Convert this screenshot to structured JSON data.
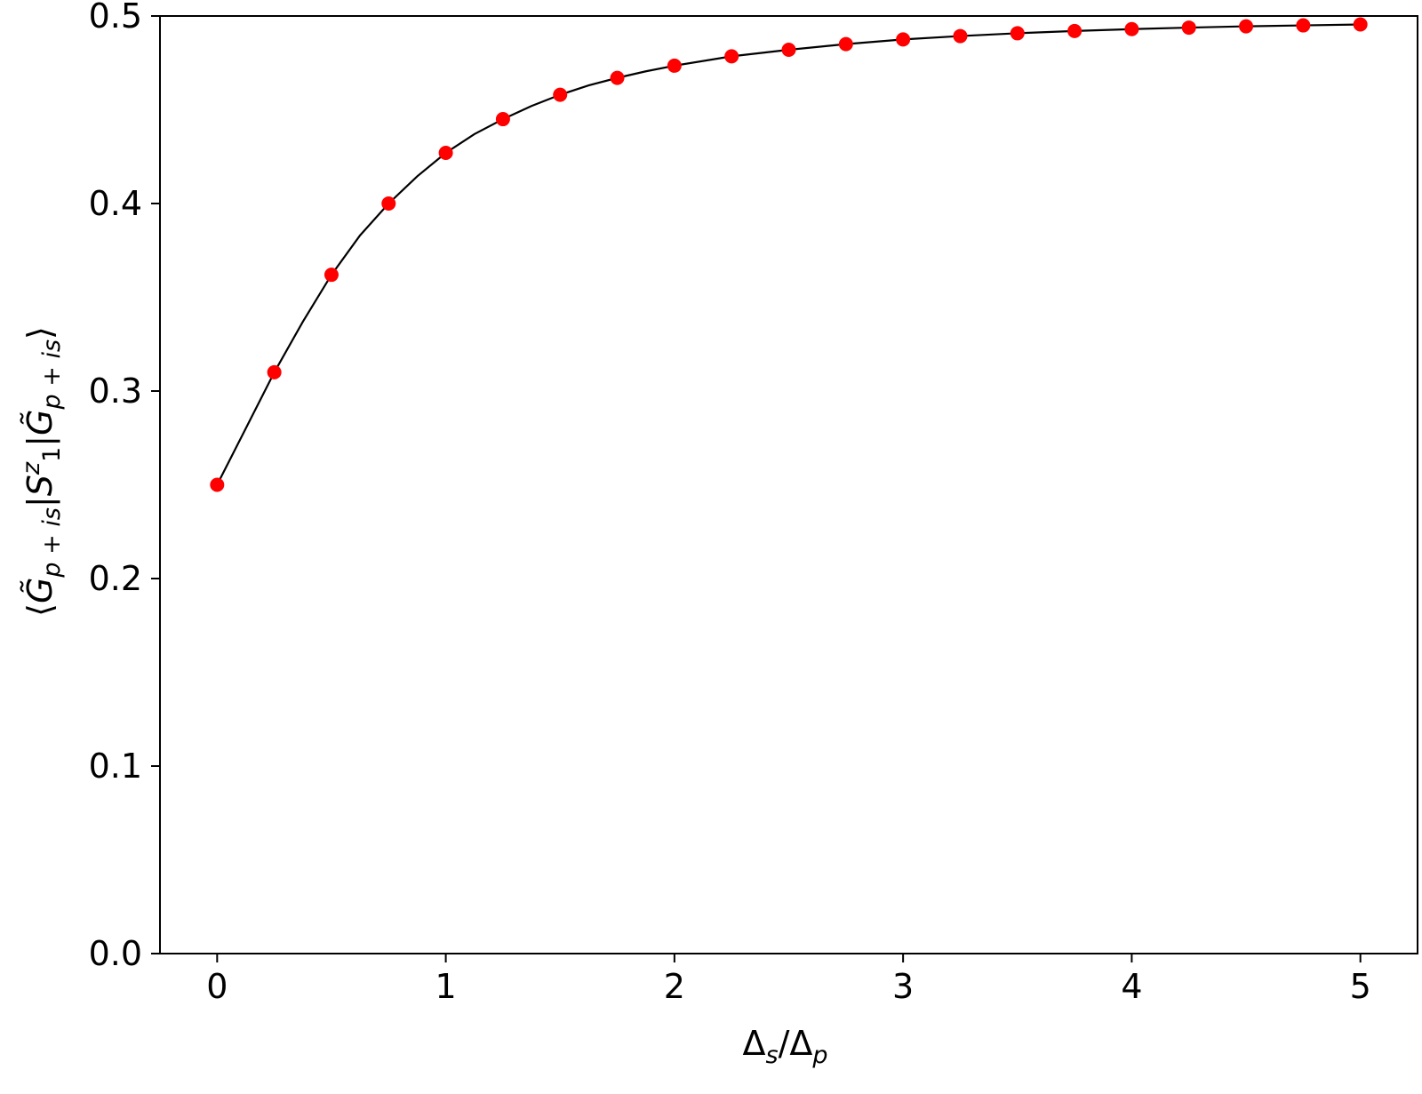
{
  "chart_data": {
    "type": "line",
    "title": "",
    "xlabel": {
      "parts": [
        {
          "t": "Δ",
          "style": "normal",
          "shift": "base"
        },
        {
          "t": "s",
          "style": "italic",
          "shift": "sub"
        },
        {
          "t": "/Δ",
          "style": "normal",
          "shift": "base"
        },
        {
          "t": "p",
          "style": "italic",
          "shift": "sub"
        }
      ]
    },
    "ylabel": {
      "parts": [
        {
          "t": "⟨",
          "style": "normal",
          "shift": "base"
        },
        {
          "t": "G̃",
          "style": "italic",
          "shift": "base"
        },
        {
          "t": "p + is",
          "style": "italic",
          "shift": "sub"
        },
        {
          "t": "|",
          "style": "normal",
          "shift": "base"
        },
        {
          "t": "S",
          "style": "italic",
          "shift": "base"
        },
        {
          "t": "z",
          "style": "italic",
          "shift": "sup"
        },
        {
          "t": "1",
          "style": "normal",
          "shift": "subclose"
        },
        {
          "t": "|",
          "style": "normal",
          "shift": "base"
        },
        {
          "t": "G̃",
          "style": "italic",
          "shift": "base"
        },
        {
          "t": "p + is",
          "style": "italic",
          "shift": "sub"
        },
        {
          "t": "⟩",
          "style": "normal",
          "shift": "base"
        }
      ]
    },
    "xlim": [
      -0.25,
      5.25
    ],
    "ylim": [
      0.0,
      0.5
    ],
    "xticks": [
      0,
      1,
      2,
      3,
      4,
      5
    ],
    "xtick_labels": [
      "0",
      "1",
      "2",
      "3",
      "4",
      "5"
    ],
    "yticks": [
      0.0,
      0.1,
      0.2,
      0.3,
      0.4,
      0.5
    ],
    "ytick_labels": [
      "0.0",
      "0.1",
      "0.2",
      "0.3",
      "0.4",
      "0.5"
    ],
    "grid": false,
    "legend": null,
    "series": [
      {
        "kind": "markers",
        "color": "#ff0000",
        "x": [
          0,
          0.25,
          0.5,
          0.75,
          1.0,
          1.25,
          1.5,
          1.75,
          2.0,
          2.25,
          2.5,
          2.75,
          3.0,
          3.25,
          3.5,
          3.75,
          4.0,
          4.25,
          4.5,
          4.75,
          5.0
        ],
        "y": [
          0.25,
          0.31,
          0.362,
          0.4,
          0.427,
          0.445,
          0.458,
          0.467,
          0.4735,
          0.4785,
          0.482,
          0.485,
          0.4875,
          0.4893,
          0.4908,
          0.492,
          0.493,
          0.4938,
          0.4945,
          0.495,
          0.4955
        ]
      },
      {
        "kind": "line",
        "color": "#000000",
        "x": [
          0,
          0.125,
          0.25,
          0.375,
          0.5,
          0.625,
          0.75,
          0.875,
          1.0,
          1.125,
          1.25,
          1.375,
          1.5,
          1.625,
          1.75,
          1.875,
          2.0,
          2.25,
          2.5,
          2.75,
          3.0,
          3.25,
          3.5,
          3.75,
          4.0,
          4.25,
          4.5,
          4.75,
          5.0
        ],
        "y": [
          0.25,
          0.28,
          0.31,
          0.337,
          0.362,
          0.383,
          0.4,
          0.4145,
          0.427,
          0.437,
          0.445,
          0.452,
          0.458,
          0.463,
          0.467,
          0.4705,
          0.4735,
          0.4785,
          0.482,
          0.485,
          0.4875,
          0.4893,
          0.4908,
          0.492,
          0.493,
          0.4938,
          0.4945,
          0.495,
          0.4955
        ]
      }
    ]
  }
}
